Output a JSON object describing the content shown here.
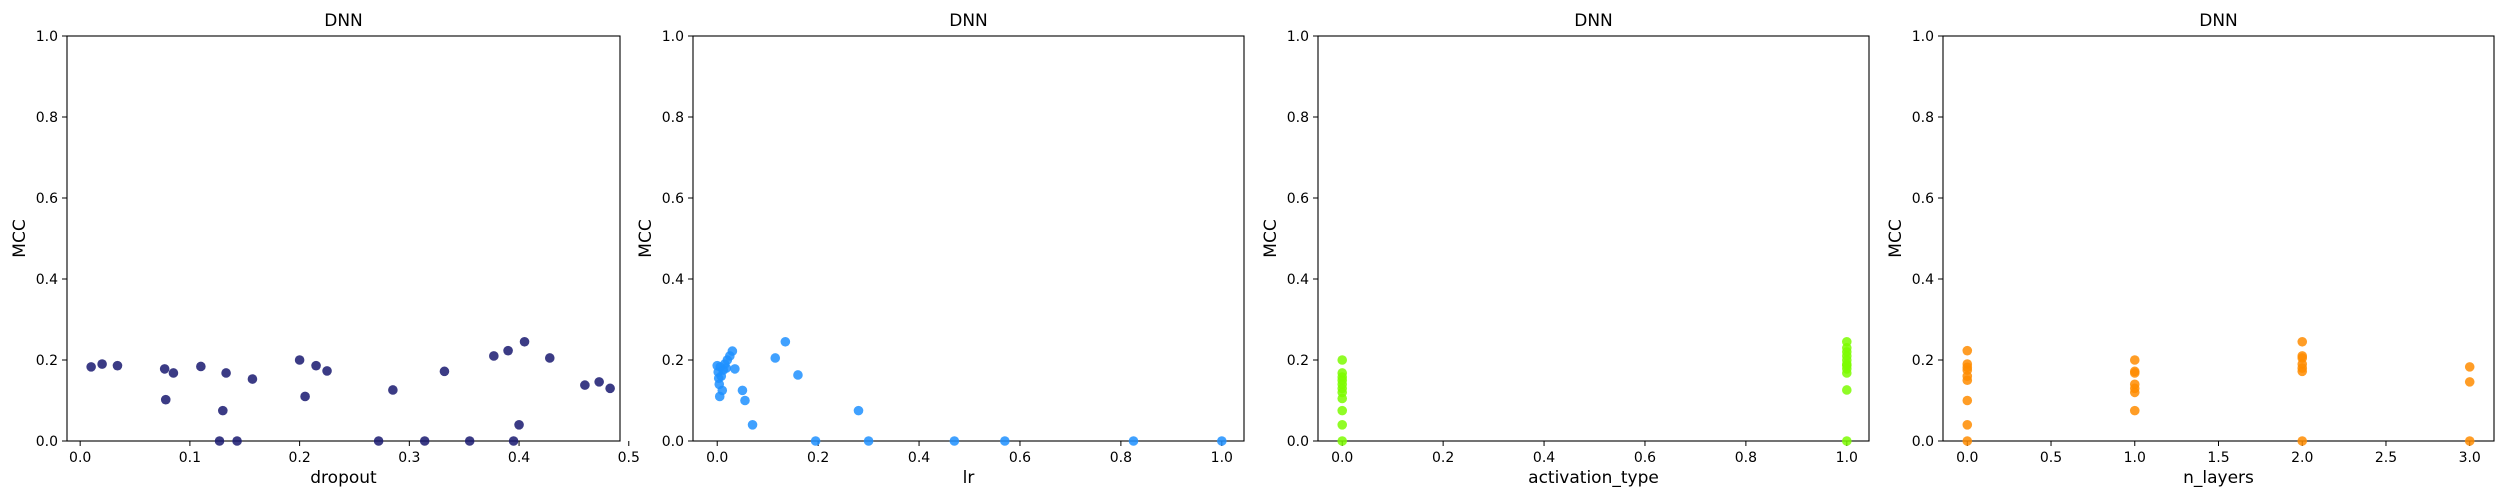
{
  "chart_data": [
    {
      "type": "scatter",
      "title": "DNN",
      "xlabel": "dropout",
      "ylabel": "MCC",
      "xlim": [
        -0.012,
        0.492
      ],
      "ylim": [
        0,
        1
      ],
      "xticks": [
        "0.0",
        "0.1",
        "0.2",
        "0.3",
        "0.4",
        "0.5"
      ],
      "xtick_values": [
        0,
        0.1,
        0.2,
        0.3,
        0.4,
        0.5
      ],
      "yticks": [
        "0.0",
        "0.2",
        "0.4",
        "0.6",
        "0.8",
        "1.0"
      ],
      "ytick_values": [
        0,
        0.2,
        0.4,
        0.6,
        0.8,
        1.0
      ],
      "color": "#191970",
      "points": [
        [
          0.01,
          0.183
        ],
        [
          0.02,
          0.19
        ],
        [
          0.034,
          0.186
        ],
        [
          0.077,
          0.178
        ],
        [
          0.078,
          0.102
        ],
        [
          0.085,
          0.168
        ],
        [
          0.11,
          0.184
        ],
        [
          0.127,
          0.0
        ],
        [
          0.13,
          0.075
        ],
        [
          0.133,
          0.168
        ],
        [
          0.143,
          0.0
        ],
        [
          0.157,
          0.153
        ],
        [
          0.2,
          0.2
        ],
        [
          0.205,
          0.11
        ],
        [
          0.215,
          0.186
        ],
        [
          0.225,
          0.173
        ],
        [
          0.272,
          0.0
        ],
        [
          0.285,
          0.126
        ],
        [
          0.314,
          0.0
        ],
        [
          0.332,
          0.172
        ],
        [
          0.355,
          0.0
        ],
        [
          0.377,
          0.21
        ],
        [
          0.39,
          0.223
        ],
        [
          0.395,
          0.0
        ],
        [
          0.4,
          0.04
        ],
        [
          0.405,
          0.245
        ],
        [
          0.428,
          0.205
        ],
        [
          0.46,
          0.138
        ],
        [
          0.473,
          0.146
        ],
        [
          0.483,
          0.13
        ]
      ]
    },
    {
      "type": "scatter",
      "title": "DNN",
      "xlabel": "lr",
      "ylabel": "MCC",
      "xlim": [
        -0.048,
        1.044
      ],
      "ylim": [
        0,
        1
      ],
      "xticks": [
        "0.0",
        "0.2",
        "0.4",
        "0.6",
        "0.8",
        "1.0"
      ],
      "xtick_values": [
        0,
        0.2,
        0.4,
        0.6,
        0.8,
        1.0
      ],
      "yticks": [
        "0.0",
        "0.2",
        "0.4",
        "0.6",
        "0.8",
        "1.0"
      ],
      "ytick_values": [
        0,
        0.2,
        0.4,
        0.6,
        0.8,
        1.0
      ],
      "color": "#1e90ff",
      "points": [
        [
          0.0,
          0.186
        ],
        [
          0.002,
          0.17
        ],
        [
          0.003,
          0.155
        ],
        [
          0.004,
          0.14
        ],
        [
          0.005,
          0.11
        ],
        [
          0.006,
          0.183
        ],
        [
          0.008,
          0.16
        ],
        [
          0.01,
          0.125
        ],
        [
          0.012,
          0.175
        ],
        [
          0.015,
          0.19
        ],
        [
          0.018,
          0.18
        ],
        [
          0.02,
          0.2
        ],
        [
          0.025,
          0.21
        ],
        [
          0.03,
          0.222
        ],
        [
          0.035,
          0.178
        ],
        [
          0.05,
          0.125
        ],
        [
          0.055,
          0.1
        ],
        [
          0.07,
          0.04
        ],
        [
          0.115,
          0.205
        ],
        [
          0.135,
          0.245
        ],
        [
          0.16,
          0.163
        ],
        [
          0.28,
          0.075
        ],
        [
          0.195,
          0.0
        ],
        [
          0.3,
          0.0
        ],
        [
          0.47,
          0.0
        ],
        [
          0.57,
          0.0
        ],
        [
          0.825,
          0.0
        ],
        [
          1.0,
          0.0
        ]
      ]
    },
    {
      "type": "scatter",
      "title": "DNN",
      "xlabel": "activation_type",
      "ylabel": "MCC",
      "xlim": [
        -0.048,
        1.044
      ],
      "ylim": [
        0,
        1
      ],
      "xticks": [
        "0.0",
        "0.2",
        "0.4",
        "0.6",
        "0.8",
        "1.0"
      ],
      "xtick_values": [
        0,
        0.2,
        0.4,
        0.6,
        0.8,
        1.0
      ],
      "yticks": [
        "0.0",
        "0.2",
        "0.4",
        "0.6",
        "0.8",
        "1.0"
      ],
      "ytick_values": [
        0,
        0.2,
        0.4,
        0.6,
        0.8,
        1.0
      ],
      "color": "#7cfc00",
      "points": [
        [
          0,
          0.2
        ],
        [
          0,
          0.168
        ],
        [
          0,
          0.158
        ],
        [
          0,
          0.15
        ],
        [
          0,
          0.14
        ],
        [
          0,
          0.13
        ],
        [
          0,
          0.12
        ],
        [
          0,
          0.105
        ],
        [
          0,
          0.075
        ],
        [
          0,
          0.04
        ],
        [
          0,
          0.0
        ],
        [
          1,
          0.245
        ],
        [
          1,
          0.23
        ],
        [
          1,
          0.22
        ],
        [
          1,
          0.21
        ],
        [
          1,
          0.2
        ],
        [
          1,
          0.19
        ],
        [
          1,
          0.186
        ],
        [
          1,
          0.178
        ],
        [
          1,
          0.168
        ],
        [
          1,
          0.126
        ],
        [
          1,
          0.0
        ]
      ]
    },
    {
      "type": "scatter",
      "title": "DNN",
      "xlabel": "n_layers",
      "ylabel": "MCC",
      "xlim": [
        -0.145,
        3.145
      ],
      "ylim": [
        0,
        1
      ],
      "xticks": [
        "0.0",
        "0.5",
        "1.0",
        "1.5",
        "2.0",
        "2.5",
        "3.0"
      ],
      "xtick_values": [
        0,
        0.5,
        1.0,
        1.5,
        2.0,
        2.5,
        3.0
      ],
      "yticks": [
        "0.0",
        "0.2",
        "0.4",
        "0.6",
        "0.8",
        "1.0"
      ],
      "ytick_values": [
        0,
        0.2,
        0.4,
        0.6,
        0.8,
        1.0
      ],
      "color": "#ff8c00",
      "points": [
        [
          0,
          0.223
        ],
        [
          0,
          0.19
        ],
        [
          0,
          0.182
        ],
        [
          0,
          0.175
        ],
        [
          0,
          0.16
        ],
        [
          0,
          0.15
        ],
        [
          0,
          0.1
        ],
        [
          0,
          0.04
        ],
        [
          0,
          0.0
        ],
        [
          1,
          0.2
        ],
        [
          1,
          0.172
        ],
        [
          1,
          0.168
        ],
        [
          1,
          0.14
        ],
        [
          1,
          0.13
        ],
        [
          1,
          0.12
        ],
        [
          1,
          0.075
        ],
        [
          2,
          0.245
        ],
        [
          2,
          0.21
        ],
        [
          2,
          0.205
        ],
        [
          2,
          0.19
        ],
        [
          2,
          0.18
        ],
        [
          2,
          0.172
        ],
        [
          2,
          0.0
        ],
        [
          3,
          0.183
        ],
        [
          3,
          0.146
        ],
        [
          3,
          0.0
        ]
      ]
    }
  ]
}
